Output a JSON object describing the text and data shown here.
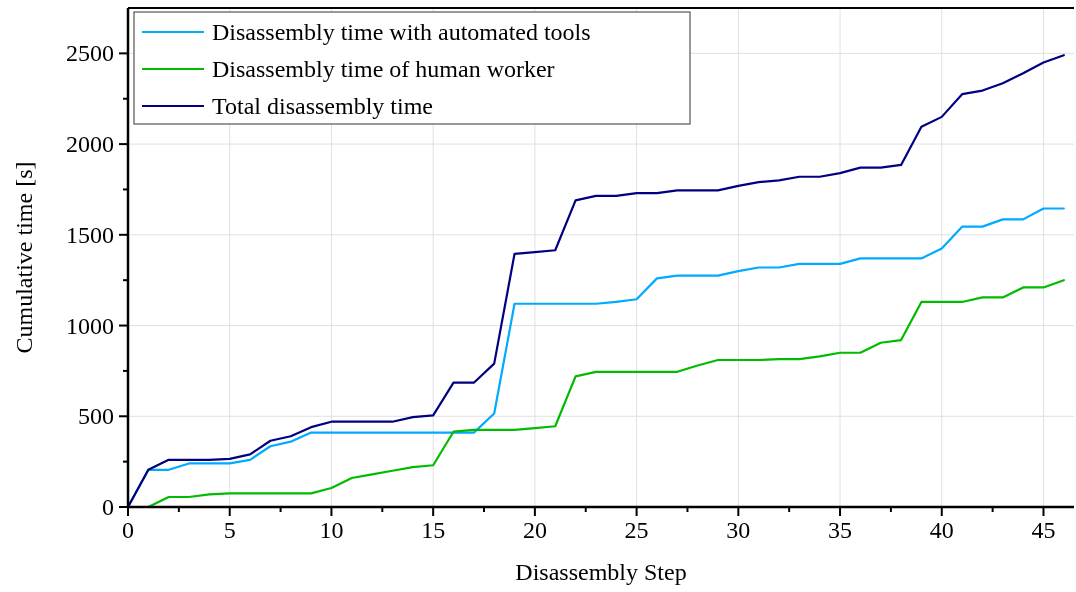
{
  "chart_data": {
    "type": "line",
    "xlabel": "Disassembly Step",
    "ylabel": "Cumulative time [s]",
    "x": [
      0,
      1,
      2,
      3,
      4,
      5,
      6,
      7,
      8,
      9,
      10,
      11,
      12,
      13,
      14,
      15,
      16,
      17,
      18,
      19,
      20,
      21,
      22,
      23,
      24,
      25,
      26,
      27,
      28,
      29,
      30,
      31,
      32,
      33,
      34,
      35,
      36,
      37,
      38,
      39,
      40,
      41,
      42,
      43,
      44,
      45,
      46
    ],
    "series": [
      {
        "name": "Disassembly time with automated tools",
        "color": "#00aaff",
        "values": [
          0,
          205,
          205,
          240,
          240,
          240,
          260,
          335,
          360,
          410,
          410,
          410,
          410,
          410,
          410,
          410,
          410,
          410,
          515,
          1120,
          1120,
          1120,
          1120,
          1120,
          1130,
          1145,
          1260,
          1275,
          1275,
          1275,
          1300,
          1320,
          1320,
          1340,
          1340,
          1340,
          1370,
          1370,
          1370,
          1370,
          1425,
          1545,
          1545,
          1585,
          1585,
          1645,
          1645
        ]
      },
      {
        "name": "Disassembly time of human worker",
        "color": "#00bb00",
        "values": [
          0,
          0,
          55,
          55,
          70,
          75,
          75,
          75,
          75,
          75,
          105,
          160,
          180,
          200,
          220,
          230,
          415,
          425,
          425,
          425,
          435,
          445,
          720,
          745,
          745,
          745,
          745,
          745,
          780,
          810,
          810,
          810,
          815,
          815,
          830,
          850,
          850,
          905,
          920,
          1130,
          1130,
          1130,
          1155,
          1155,
          1210,
          1210,
          1250
        ]
      },
      {
        "name": "Total disassembly time",
        "color": "#000080",
        "values": [
          0,
          205,
          260,
          260,
          260,
          265,
          290,
          365,
          390,
          440,
          470,
          470,
          470,
          470,
          495,
          505,
          685,
          685,
          790,
          1395,
          1405,
          1415,
          1690,
          1715,
          1715,
          1730,
          1730,
          1745,
          1745,
          1745,
          1770,
          1790,
          1800,
          1820,
          1820,
          1840,
          1870,
          1870,
          1885,
          2095,
          2150,
          2275,
          2295,
          2335,
          2390,
          2450,
          2490
        ]
      }
    ],
    "xlim": [
      0,
      46.5
    ],
    "ylim": [
      0,
      2750
    ],
    "xticks": [
      0,
      {
        "value": 2.5,
        "label": null
      },
      5,
      {
        "value": 7.5,
        "label": null
      },
      10,
      {
        "value": 12.5,
        "label": null
      },
      15,
      {
        "value": 17.5,
        "label": null
      },
      20,
      {
        "value": 22.5,
        "label": null
      },
      25,
      {
        "value": 27.5,
        "label": null
      },
      30,
      {
        "value": 32.5,
        "label": null
      },
      35,
      {
        "value": 37.5,
        "label": null
      },
      40,
      {
        "value": 42.5,
        "label": null
      },
      45
    ],
    "yticks": [
      0,
      {
        "value": 250,
        "label": null
      },
      500,
      {
        "value": 750,
        "label": null
      },
      1000,
      {
        "value": 1250,
        "label": null
      },
      1500,
      {
        "value": 1750,
        "label": null
      },
      2000,
      {
        "value": 2250,
        "label": null
      },
      2500
    ],
    "grid": true,
    "legend": "top left",
    "marker": "none",
    "line_style": "solid"
  }
}
